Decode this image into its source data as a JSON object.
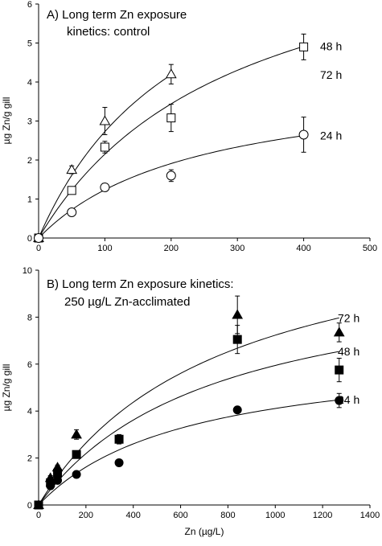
{
  "chart_data": [
    {
      "type": "scatter",
      "title_lines": [
        "A) Long term Zn exposure",
        "kinetics: control"
      ],
      "xlabel": "",
      "ylabel": "µg Zn/g gill",
      "xlim": [
        0,
        500
      ],
      "ylim": [
        0,
        6
      ],
      "xticks": [
        0,
        100,
        200,
        300,
        400,
        500
      ],
      "yticks": [
        0,
        1,
        2,
        3,
        4,
        5,
        6
      ],
      "marker_fill": "open",
      "series": [
        {
          "name": "72 h",
          "marker": "triangle",
          "x": [
            0,
            50,
            100,
            200
          ],
          "y": [
            0,
            1.75,
            3.0,
            4.2
          ],
          "err": [
            0,
            0.1,
            0.35,
            0.25
          ],
          "fit": {
            "bmax": 9.0,
            "k": 230
          }
        },
        {
          "name": "48 h",
          "marker": "square",
          "x": [
            0,
            50,
            100,
            200,
            400
          ],
          "y": [
            0,
            1.22,
            2.33,
            3.08,
            4.9
          ],
          "err": [
            0,
            0.05,
            0.15,
            0.35,
            0.33
          ],
          "fit": {
            "bmax": 8.6,
            "k": 300
          }
        },
        {
          "name": "24 h",
          "marker": "circle",
          "x": [
            0,
            50,
            100,
            200,
            400
          ],
          "y": [
            0,
            0.66,
            1.3,
            1.6,
            2.65
          ],
          "err": [
            0,
            0.05,
            0.1,
            0.15,
            0.45
          ],
          "fit": {
            "bmax": 4.2,
            "k": 240
          }
        }
      ]
    },
    {
      "type": "scatter",
      "title_lines": [
        "B) Long term Zn exposure kinetics:",
        "250 µg/L Zn-acclimated"
      ],
      "xlabel": "Zn (µg/L)",
      "ylabel": "µg Zn/g gill",
      "xlim": [
        0,
        1400
      ],
      "ylim": [
        0,
        10
      ],
      "xticks": [
        0,
        200,
        400,
        600,
        800,
        1000,
        1200,
        1400
      ],
      "yticks": [
        0,
        2,
        4,
        6,
        8,
        10
      ],
      "marker_fill": "filled",
      "series": [
        {
          "name": "72 h",
          "marker": "triangle",
          "x": [
            0,
            50,
            80,
            160,
            840,
            1270
          ],
          "y": [
            0,
            1.15,
            1.6,
            3.0,
            8.1,
            7.35
          ],
          "err": [
            0,
            0.1,
            0.1,
            0.2,
            0.8,
            0.4
          ],
          "fit": {
            "bmax": 12.8,
            "k": 770
          }
        },
        {
          "name": "48 h",
          "marker": "square",
          "x": [
            0,
            50,
            80,
            160,
            340,
            840,
            1270
          ],
          "y": [
            0,
            0.95,
            1.35,
            2.15,
            2.8,
            7.05,
            5.75
          ],
          "err": [
            0,
            0.05,
            0.1,
            0.1,
            0.2,
            0.6,
            0.5
          ],
          "fit": {
            "bmax": 10.4,
            "k": 750
          }
        },
        {
          "name": "24 h",
          "marker": "circle",
          "x": [
            0,
            50,
            80,
            160,
            340,
            840,
            1270
          ],
          "y": [
            0,
            0.82,
            1.05,
            1.3,
            1.8,
            4.05,
            4.45
          ],
          "err": [
            0,
            0.05,
            0.05,
            0.05,
            0.05,
            0.1,
            0.3
          ],
          "fit": {
            "bmax": 6.7,
            "k": 630
          }
        }
      ]
    }
  ]
}
